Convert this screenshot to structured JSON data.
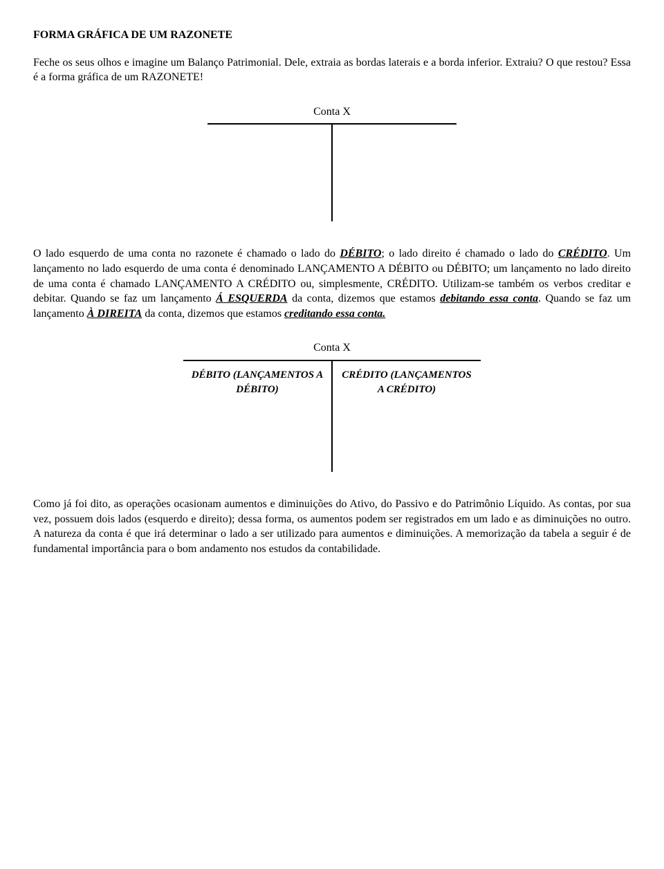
{
  "title": "FORMA GRÁFICA DE UM RAZONETE",
  "intro": "Feche os seus olhos e imagine um Balanço Patrimonial. Dele, extraia as bordas laterais e a borda inferior. Extraiu? O que restou? Essa é a forma gráfica de um RAZONETE!",
  "account1": {
    "title": "Conta X"
  },
  "p2": {
    "t1": "O lado esquerdo de uma conta no razonete é chamado o lado do ",
    "debito": "DÉBITO",
    "t2": "; o lado direito é chamado o lado do ",
    "credito": "CRÉDITO",
    "t3": ". Um lançamento no lado esquerdo de uma conta é denominado LANÇAMENTO A DÉBITO ou DÉBITO; um lançamento no lado direito de uma conta é chamado LANÇAMENTO A CRÉDITO ou, simplesmente, CRÉDITO. Utilizam-se também os verbos creditar e debitar. Quando se faz um lançamento ",
    "aesq": "Á ESQUERDA",
    "t4": " da conta, dizemos que estamos ",
    "deb_conta": "debitando essa conta",
    "t5": ". Quando se faz um lançamento ",
    "adir": "À DIREITA",
    "t6": " da conta, dizemos que estamos ",
    "cred_conta": "creditando essa conta.",
    "t7": ""
  },
  "account2": {
    "title": "Conta X",
    "left": "DÉBITO (LANÇAMENTOS A DÉBITO)",
    "right": "CRÉDITO (LANÇAMENTOS A CRÉDITO)"
  },
  "p3": "Como já foi dito, as operações ocasionam aumentos e diminuições do Ativo, do Passivo e do Patrimônio Líquido. As contas, por sua vez, possuem dois lados (esquerdo e direito); dessa forma, os aumentos podem ser registrados em um lado e as diminuições no outro. A natureza da conta é que irá determinar o lado a ser utilizado para aumentos e diminuições. A memorização da tabela a seguir é de fundamental importância para o bom andamento nos estudos da contabilidade."
}
